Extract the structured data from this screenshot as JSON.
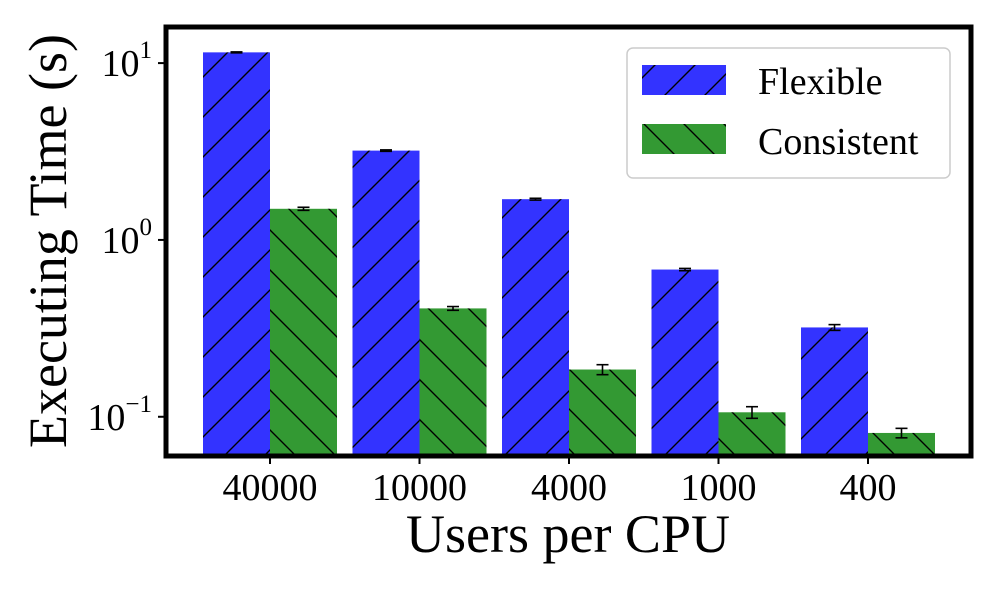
{
  "chart_data": {
    "type": "bar",
    "title": "",
    "xlabel": "Users per CPU",
    "ylabel": "Executing Time (s)",
    "yscale": "log",
    "ylim": [
      0.06,
      16
    ],
    "categories": [
      "40000",
      "10000",
      "4000",
      "1000",
      "400"
    ],
    "series": [
      {
        "name": "Flexible",
        "color": "#3333ff",
        "hatch": "forward",
        "values": [
          11.5,
          3.2,
          1.7,
          0.68,
          0.32
        ],
        "errors": [
          0.07,
          0.03,
          0.02,
          0.01,
          0.012
        ]
      },
      {
        "name": "Consistent",
        "color": "#339933",
        "hatch": "back",
        "values": [
          1.5,
          0.41,
          0.185,
          0.106,
          0.081
        ],
        "errors": [
          0.03,
          0.01,
          0.012,
          0.008,
          0.005
        ]
      }
    ],
    "yticks": [
      {
        "value": 10,
        "base": "10",
        "exp": "1"
      },
      {
        "value": 1,
        "base": "10",
        "exp": "0"
      },
      {
        "value": 0.1,
        "base": "10",
        "exp": "−1"
      }
    ],
    "legend": {
      "position": "top-right"
    },
    "grid": false
  }
}
